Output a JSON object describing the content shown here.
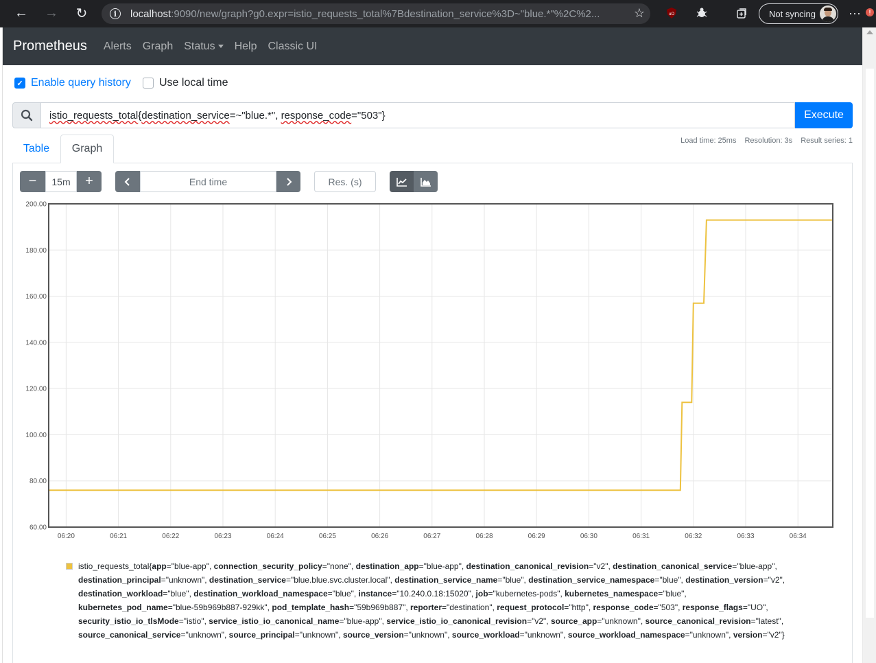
{
  "browser": {
    "url_host": "localhost",
    "url_rest": ":9090/new/graph?g0.expr=istio_requests_total%7Bdestination_service%3D~\"blue.*\"%2C%2...",
    "sync_label": "Not syncing",
    "badge_count": "!"
  },
  "navbar": {
    "brand": "Prometheus",
    "links": [
      "Alerts",
      "Graph",
      "Status",
      "Help",
      "Classic UI"
    ]
  },
  "options": {
    "query_history": "Enable query history",
    "local_time": "Use local time"
  },
  "query": {
    "expr_metric": "istio_requests_total",
    "expr_open": "{",
    "expr_label1": "destination_service",
    "expr_mid1": "=~\"blue.*\", ",
    "expr_label2": "response_code",
    "expr_mid2": "=\"503\"}",
    "execute_label": "Execute"
  },
  "tabs": [
    "Table",
    "Graph"
  ],
  "stats": {
    "load_time": "Load time: 25ms",
    "resolution": "Resolution: 3s",
    "result_series": "Result series: 1"
  },
  "controls": {
    "range": "15m",
    "end_time_placeholder": "End time",
    "res_placeholder": "Res. (s)"
  },
  "chart_data": {
    "type": "line",
    "x_ticks": [
      "06:20",
      "06:21",
      "06:22",
      "06:23",
      "06:24",
      "06:25",
      "06:26",
      "06:27",
      "06:28",
      "06:29",
      "06:30",
      "06:31",
      "06:32",
      "06:33",
      "06:34"
    ],
    "y_ticks": [
      "200.00",
      "180.00",
      "160.00",
      "140.00",
      "120.00",
      "100.00",
      "80.00",
      "60.00"
    ],
    "ylim": [
      60,
      200
    ],
    "xlim": [
      "06:19:40",
      "06:34:40"
    ],
    "grid": true,
    "series": [
      {
        "color": "#edc240",
        "points": [
          [
            "06:19:40",
            76
          ],
          [
            "06:31:45",
            76
          ],
          [
            "06:31:47",
            114
          ],
          [
            "06:31:58",
            114
          ],
          [
            "06:32:00",
            157
          ],
          [
            "06:32:12",
            157
          ],
          [
            "06:32:15",
            193
          ],
          [
            "06:34:40",
            193
          ]
        ]
      }
    ]
  },
  "legend": {
    "metric": "istio_requests_total{",
    "labels": [
      [
        "app",
        "\"blue-app\""
      ],
      [
        "connection_security_policy",
        "\"none\""
      ],
      [
        "destination_app",
        "\"blue-app\""
      ],
      [
        "destination_canonical_revision",
        "\"v2\""
      ],
      [
        "destination_canonical_service",
        "\"blue-app\""
      ],
      [
        "destination_principal",
        "\"unknown\""
      ],
      [
        "destination_service",
        "\"blue.blue.svc.cluster.local\""
      ],
      [
        "destination_service_name",
        "\"blue\""
      ],
      [
        "destination_service_namespace",
        "\"blue\""
      ],
      [
        "destination_version",
        "\"v2\""
      ],
      [
        "destination_workload",
        "\"blue\""
      ],
      [
        "destination_workload_namespace",
        "\"blue\""
      ],
      [
        "instance",
        "\"10.240.0.18:15020\""
      ],
      [
        "job",
        "\"kubernetes-pods\""
      ],
      [
        "kubernetes_namespace",
        "\"blue\""
      ],
      [
        "kubernetes_pod_name",
        "\"blue-59b969b887-929kk\""
      ],
      [
        "pod_template_hash",
        "\"59b969b887\""
      ],
      [
        "reporter",
        "\"destination\""
      ],
      [
        "request_protocol",
        "\"http\""
      ],
      [
        "response_code",
        "\"503\""
      ],
      [
        "response_flags",
        "\"UO\""
      ],
      [
        "security_istio_io_tlsMode",
        "\"istio\""
      ],
      [
        "service_istio_io_canonical_name",
        "\"blue-app\""
      ],
      [
        "service_istio_io_canonical_revision",
        "\"v2\""
      ],
      [
        "source_app",
        "\"unknown\""
      ],
      [
        "source_canonical_revision",
        "\"latest\""
      ],
      [
        "source_canonical_service",
        "\"unknown\""
      ],
      [
        "source_principal",
        "\"unknown\""
      ],
      [
        "source_version",
        "\"unknown\""
      ],
      [
        "source_workload",
        "\"unknown\""
      ],
      [
        "source_workload_namespace",
        "\"unknown\""
      ],
      [
        "version",
        "\"v2\""
      ]
    ],
    "close": "}"
  },
  "colors": {
    "accent": "#007bff",
    "navbar": "#343a40",
    "series": "#edc240"
  }
}
